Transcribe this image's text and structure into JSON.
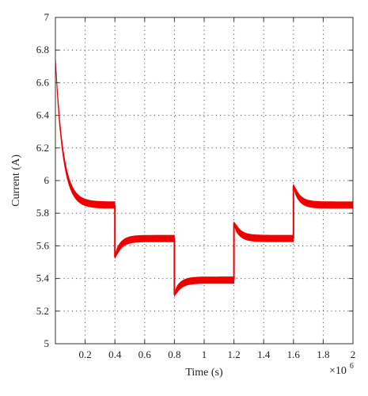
{
  "chart_data": {
    "type": "line",
    "title": "",
    "xlabel": "Time (s)",
    "ylabel": "Current (A)",
    "x_multiplier_base": "×10",
    "x_multiplier_exp": "6",
    "xlim": [
      0,
      2
    ],
    "ylim": [
      5,
      7
    ],
    "xticks": [
      "0.2",
      "0.4",
      "0.6",
      "0.8",
      "1",
      "1.2",
      "1.4",
      "1.6",
      "1.8",
      "2"
    ],
    "yticks": [
      "5",
      "5.2",
      "5.4",
      "5.6",
      "5.8",
      "6",
      "6.2",
      "6.4",
      "6.6",
      "6.8",
      "7"
    ],
    "grid": true,
    "series": [
      {
        "color": "#ee0000",
        "ripple_band": 0.04,
        "segments": [
          {
            "x_start": 0.0,
            "x_end": 0.4,
            "y_start": 6.75,
            "y_steady": 5.85,
            "tau": 0.05
          },
          {
            "x_start": 0.4,
            "x_end": 0.8,
            "y_start": 5.53,
            "y_steady": 5.645,
            "tau": 0.04
          },
          {
            "x_start": 0.8,
            "x_end": 1.2,
            "y_start": 5.3,
            "y_steady": 5.39,
            "tau": 0.04
          },
          {
            "x_start": 1.2,
            "x_end": 1.6,
            "y_start": 5.74,
            "y_steady": 5.645,
            "tau": 0.04
          },
          {
            "x_start": 1.6,
            "x_end": 2.0,
            "y_start": 5.97,
            "y_steady": 5.85,
            "tau": 0.04
          }
        ]
      }
    ]
  }
}
